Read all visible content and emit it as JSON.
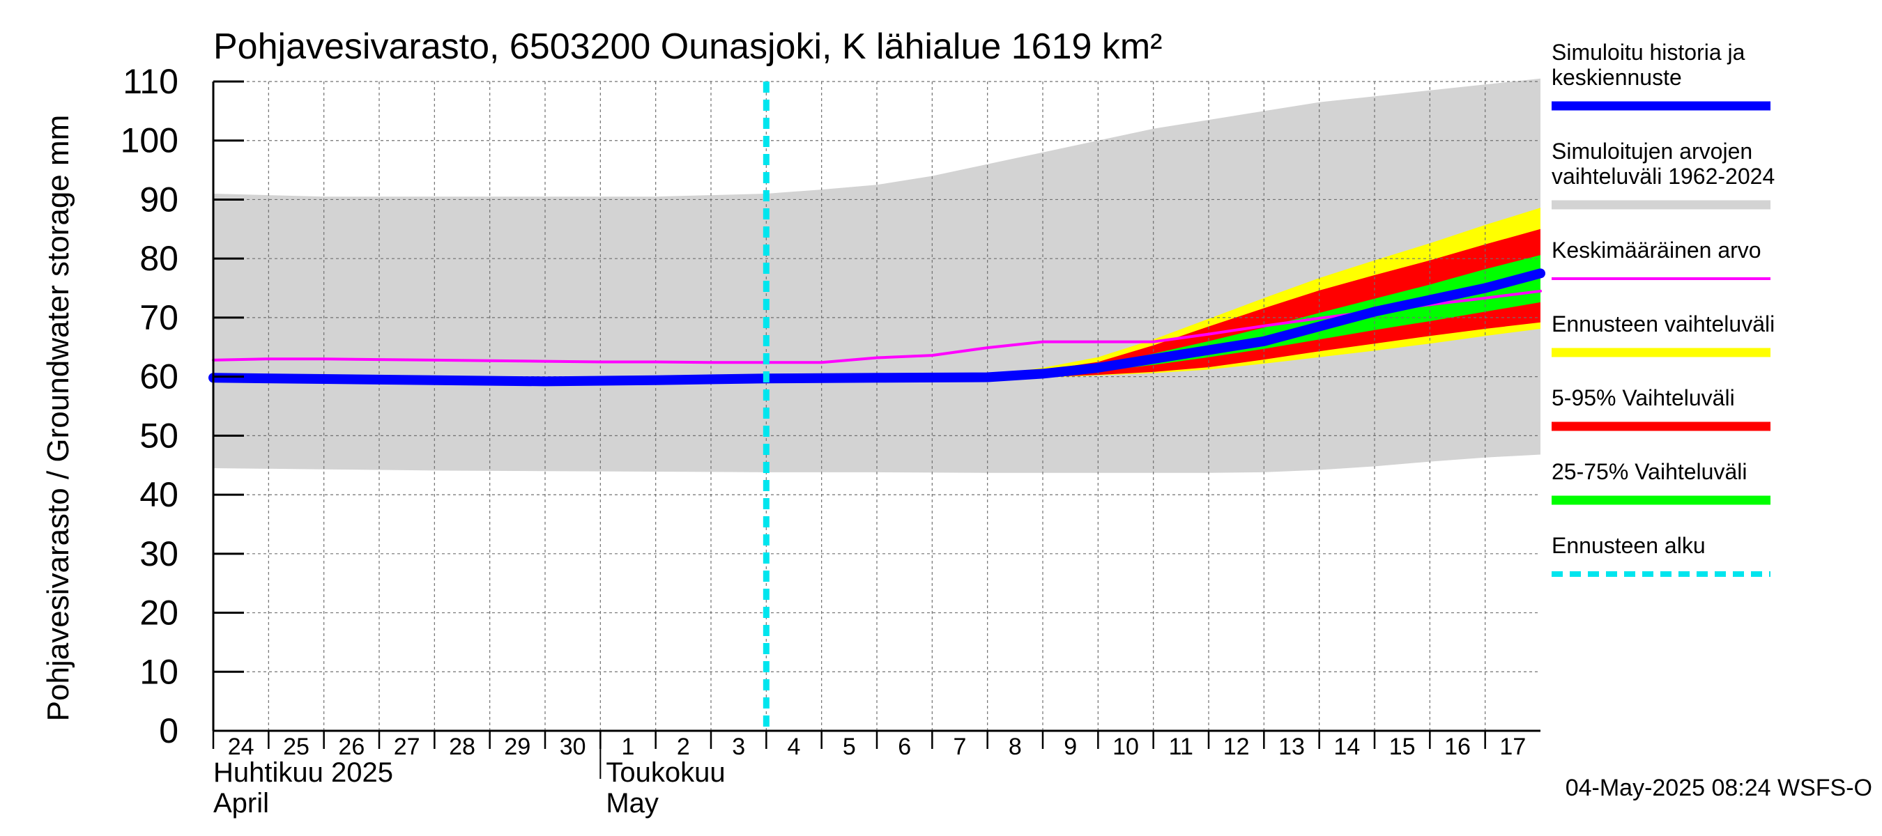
{
  "chart_data": {
    "type": "area",
    "title": "Pohjavesivarasto, 6503200 Ounasjoki, K lähialue 1619 km²",
    "ylabel": "Pohjavesivarasto / Groundwater storage   mm",
    "ylim": [
      0,
      110
    ],
    "yticks": [
      0,
      10,
      20,
      30,
      40,
      50,
      60,
      70,
      80,
      90,
      100,
      110
    ],
    "x_range_days": [
      "2025-04-24",
      "2025-05-18"
    ],
    "day_labels": [
      "24",
      "25",
      "26",
      "27",
      "28",
      "29",
      "30",
      "1",
      "2",
      "3",
      "4",
      "5",
      "6",
      "7",
      "8",
      "9",
      "10",
      "11",
      "12",
      "13",
      "14",
      "15",
      "16",
      "17"
    ],
    "month_labels": [
      {
        "fi": "Huhtikuu  2025",
        "en": "April"
      },
      {
        "fi": "Toukokuu",
        "en": "May"
      }
    ],
    "grid": true,
    "legend_position": "right",
    "forecast_start": "2025-05-04",
    "timestamp": "04-May-2025 08:24 WSFS-O",
    "legend": [
      {
        "key": "history",
        "label_lines": [
          "Simuloitu historia ja",
          "keskiennuste"
        ],
        "color": "#0000ff",
        "style": "thick"
      },
      {
        "key": "range",
        "label_lines": [
          "Simuloitujen arvojen",
          "vaihteluväli 1962-2024"
        ],
        "color": "#d3d3d3",
        "style": "thick"
      },
      {
        "key": "mean",
        "label_lines": [
          "Keskimääräinen arvo"
        ],
        "color": "#ff00ff",
        "style": "thin"
      },
      {
        "key": "fc_range",
        "label_lines": [
          "Ennusteen vaihteluväli"
        ],
        "color": "#ffff00",
        "style": "thick"
      },
      {
        "key": "p5_95",
        "label_lines": [
          "5-95% Vaihteluväli"
        ],
        "color": "#ff0000",
        "style": "thick"
      },
      {
        "key": "p25_75",
        "label_lines": [
          "25-75% Vaihteluväli"
        ],
        "color": "#00ff00",
        "style": "thick"
      },
      {
        "key": "fc_start",
        "label_lines": [
          "Ennusteen alku"
        ],
        "color": "#00e5ee",
        "style": "dashed"
      }
    ],
    "series": {
      "hist_range_upper": {
        "x": [
          0,
          2,
          4,
          6,
          8,
          10,
          11,
          12,
          13,
          14,
          15,
          16,
          17,
          18,
          19,
          20,
          21,
          22,
          23,
          24
        ],
        "y": [
          91,
          90.5,
          90.5,
          90.5,
          90.5,
          91,
          91.7,
          92.5,
          94,
          96,
          98,
          100,
          102,
          103.5,
          105,
          106.5,
          107.5,
          108.5,
          109.5,
          110.5
        ]
      },
      "hist_range_lower": {
        "x": [
          0,
          2,
          4,
          6,
          8,
          10,
          12,
          14,
          16,
          18,
          19,
          20,
          21,
          22,
          23,
          24
        ],
        "y": [
          44.5,
          44.3,
          44.1,
          44,
          43.9,
          43.8,
          43.8,
          43.7,
          43.7,
          43.7,
          43.8,
          44.2,
          44.8,
          45.6,
          46.3,
          46.8
        ]
      },
      "mean": {
        "x": [
          0,
          1,
          2,
          3,
          4,
          5,
          6,
          7,
          8,
          9,
          10,
          11,
          12,
          13,
          14,
          15,
          16,
          17,
          18,
          19,
          20,
          21,
          22,
          23,
          24
        ],
        "y": [
          62.8,
          63,
          63,
          62.9,
          62.8,
          62.7,
          62.6,
          62.5,
          62.5,
          62.4,
          62.4,
          62.4,
          63.2,
          63.6,
          64.9,
          65.9,
          65.9,
          65.9,
          67.2,
          68.6,
          69.9,
          71.1,
          72.2,
          73.3,
          74.5
        ]
      },
      "median": {
        "x": [
          0,
          2,
          4,
          6,
          8,
          10,
          12,
          14,
          15,
          16,
          17,
          18,
          19,
          20,
          21,
          22,
          23,
          24
        ],
        "y": [
          59.8,
          59.6,
          59.4,
          59.2,
          59.4,
          59.7,
          59.8,
          59.9,
          60.5,
          61.5,
          63,
          64.5,
          66,
          68.5,
          71,
          73,
          75,
          77.5
        ]
      },
      "fc_min": {
        "x": [
          10,
          12,
          14,
          15,
          16,
          17,
          18,
          19,
          20,
          21,
          22,
          23,
          24
        ],
        "y": [
          59.5,
          59.5,
          59.6,
          59.8,
          60.2,
          60.6,
          61.2,
          62.2,
          63.3,
          64.4,
          65.6,
          66.9,
          68.1
        ]
      },
      "fc_max": {
        "x": [
          10,
          12,
          14,
          15,
          16,
          17,
          18,
          19,
          20,
          21,
          22,
          23,
          24
        ],
        "y": [
          59.9,
          60,
          60.3,
          61.5,
          63.3,
          66.3,
          69.8,
          73.3,
          76.7,
          79.7,
          82.6,
          85.7,
          88.6
        ]
      },
      "p5": {
        "x": [
          10,
          12,
          14,
          15,
          16,
          17,
          18,
          19,
          20,
          21,
          22,
          23,
          24
        ],
        "y": [
          59.5,
          59.6,
          59.7,
          59.9,
          60.3,
          60.8,
          61.6,
          62.9,
          64.3,
          65.6,
          66.9,
          68.1,
          69.2
        ]
      },
      "p95": {
        "x": [
          10,
          12,
          14,
          15,
          16,
          17,
          18,
          19,
          20,
          21,
          22,
          23,
          24
        ],
        "y": [
          59.9,
          60,
          60.2,
          61.1,
          62.5,
          65.3,
          68.5,
          71.6,
          74.6,
          77.2,
          79.7,
          82.4,
          85
        ]
      },
      "p25": {
        "x": [
          10,
          12,
          14,
          15,
          16,
          17,
          18,
          19,
          20,
          21,
          22,
          23,
          24
        ],
        "y": [
          59.6,
          59.7,
          59.8,
          60.2,
          60.9,
          62,
          63.3,
          64.7,
          66.3,
          67.9,
          69.4,
          71,
          72.6
        ]
      },
      "p75": {
        "x": [
          10,
          12,
          14,
          15,
          16,
          17,
          18,
          19,
          20,
          21,
          22,
          23,
          24
        ],
        "y": [
          59.8,
          59.9,
          60,
          60.7,
          61.9,
          63.9,
          66,
          68.3,
          70.8,
          73.2,
          75.6,
          78.2,
          80.6
        ]
      }
    }
  }
}
